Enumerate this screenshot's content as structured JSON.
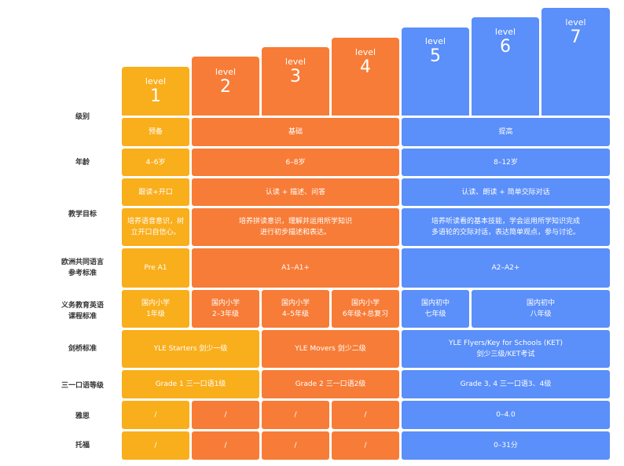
{
  "colors": {
    "yellow": "#f9ae1b",
    "orange": "#f77c37",
    "blue": "#5b8ff9"
  },
  "levels": [
    {
      "word": "level",
      "num": "1"
    },
    {
      "word": "level",
      "num": "2"
    },
    {
      "word": "level",
      "num": "3"
    },
    {
      "word": "level",
      "num": "4"
    },
    {
      "word": "level",
      "num": "5"
    },
    {
      "word": "level",
      "num": "6"
    },
    {
      "word": "level",
      "num": "7"
    }
  ],
  "row_labels": {
    "grade": "级别",
    "age": "年龄",
    "goal": "教学目标",
    "cefr": "欧洲共同语言\n参考标准",
    "curriculum": "义务教育英语\n课程标准",
    "cambridge": "剑桥标准",
    "trinity": "三一口语等级",
    "ielts": "雅思",
    "toefl": "托福"
  },
  "cells": {
    "grade_prep": "预备",
    "grade_basic": "基础",
    "grade_adv": "提高",
    "age_1": "4–6岁",
    "age_2": "6–8岁",
    "age_3": "8–12岁",
    "goal1_1": "跟读+开口",
    "goal1_2": "认读 + 描述、问答",
    "goal1_3": "认读、朗读 + 简单交际对话",
    "goal2_1": "培养语音意识，树\n立开口自信心。",
    "goal2_2": "培养拼读意识，理解并运用所学知识\n进行初步描述和表达。",
    "goal2_3": "培养听读看的基本技能，学会运用所学知识完成\n多语轮的交际对话，表达简单观点，参与讨论。",
    "cefr_1": "Pre A1",
    "cefr_2": "A1–A1+",
    "cefr_3": "A2–A2+",
    "cur_1": "国内小学\n1年级",
    "cur_2": "国内小学\n2–3年级",
    "cur_3": "国内小学\n4–5年级",
    "cur_4": "国内小学\n6年级+总复习",
    "cur_5": "国内初中\n七年级",
    "cur_6": "国内初中\n八年级",
    "cam_1": "YLE Starters 剑少一级",
    "cam_2": "YLE Movers 剑少二级",
    "cam_3": "YLE Flyers/Key for Schools (KET)\n剑少三级/KET考试",
    "tri_1": "Grade 1 三一口语1级",
    "tri_2": "Grade 2 三一口语2级",
    "tri_3": "Grade 3, 4 三一口语3、4级",
    "ielts_1": "/",
    "ielts_2": "/",
    "ielts_3": "/",
    "ielts_4": "/",
    "ielts_5": "0–4.0",
    "toefl_1": "/",
    "toefl_2": "/",
    "toefl_3": "/",
    "toefl_4": "/",
    "toefl_5": "0–31分"
  }
}
